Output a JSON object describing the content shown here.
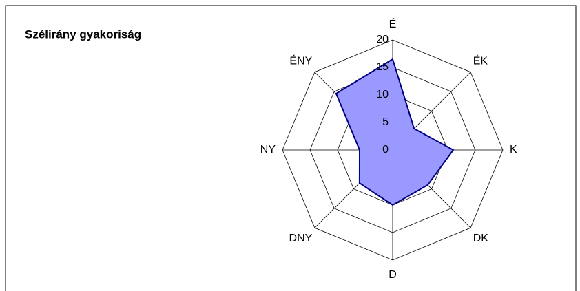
{
  "chart_data": {
    "type": "radar",
    "title": "Szélirány gyakoriság",
    "categories": [
      "É",
      "ÉK",
      "K",
      "DK",
      "D",
      "DNY",
      "NY",
      "ÉNY"
    ],
    "values": [
      16.5,
      5.5,
      11,
      9,
      10,
      8.5,
      6,
      14.5
    ],
    "color": "#9999ff",
    "line_color": "#000080",
    "ylim": [
      0,
      20
    ],
    "yticks": [
      0,
      5,
      10,
      15,
      20
    ],
    "grid": true
  }
}
